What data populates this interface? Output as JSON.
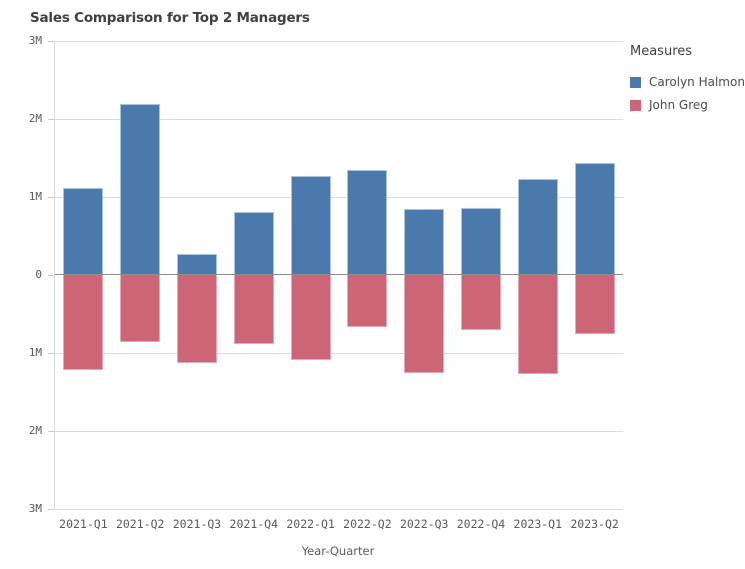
{
  "header": {
    "title": "Sales Comparison for Top 2 Managers"
  },
  "legend": {
    "title": "Measures"
  },
  "axes": {
    "x_title": "Year-Quarter",
    "y_tick_labels_top_to_bottom": [
      "3M",
      "2M",
      "1M",
      "0",
      "1M",
      "2M",
      "3M"
    ],
    "zero_tick_index": 3
  },
  "colors": {
    "series_blue": "#4a7aab",
    "series_pink": "#cc6677",
    "gridline": "#dcdcdc",
    "zero_line": "#8c8c8c",
    "axis_text": "#595959",
    "title_text": "#404040"
  },
  "chart_data": {
    "type": "bar",
    "subtype": "diverging-vertical",
    "title": "Sales Comparison for Top 2 Managers",
    "xlabel": "Year-Quarter",
    "ylabel": "",
    "y_unit": "M",
    "ylim": [
      -3,
      3
    ],
    "grid": true,
    "legend_position": "right",
    "legend_title": "Measures",
    "categories": [
      "2021-Q1",
      "2021-Q2",
      "2021-Q3",
      "2021-Q4",
      "2022-Q1",
      "2022-Q2",
      "2022-Q3",
      "2022-Q4",
      "2023-Q1",
      "2023-Q2"
    ],
    "series": [
      {
        "name": "Carolyn Halmon",
        "color": "#4a7aab",
        "plotted_direction": "up",
        "values_M": [
          1.12,
          2.19,
          0.27,
          0.81,
          1.27,
          1.35,
          0.84,
          0.86,
          1.23,
          1.44
        ]
      },
      {
        "name": "John Greg",
        "color": "#cc6677",
        "plotted_direction": "down",
        "values_M": [
          1.22,
          0.86,
          1.13,
          0.88,
          1.09,
          0.67,
          1.26,
          0.71,
          1.27,
          0.76
        ]
      }
    ]
  }
}
